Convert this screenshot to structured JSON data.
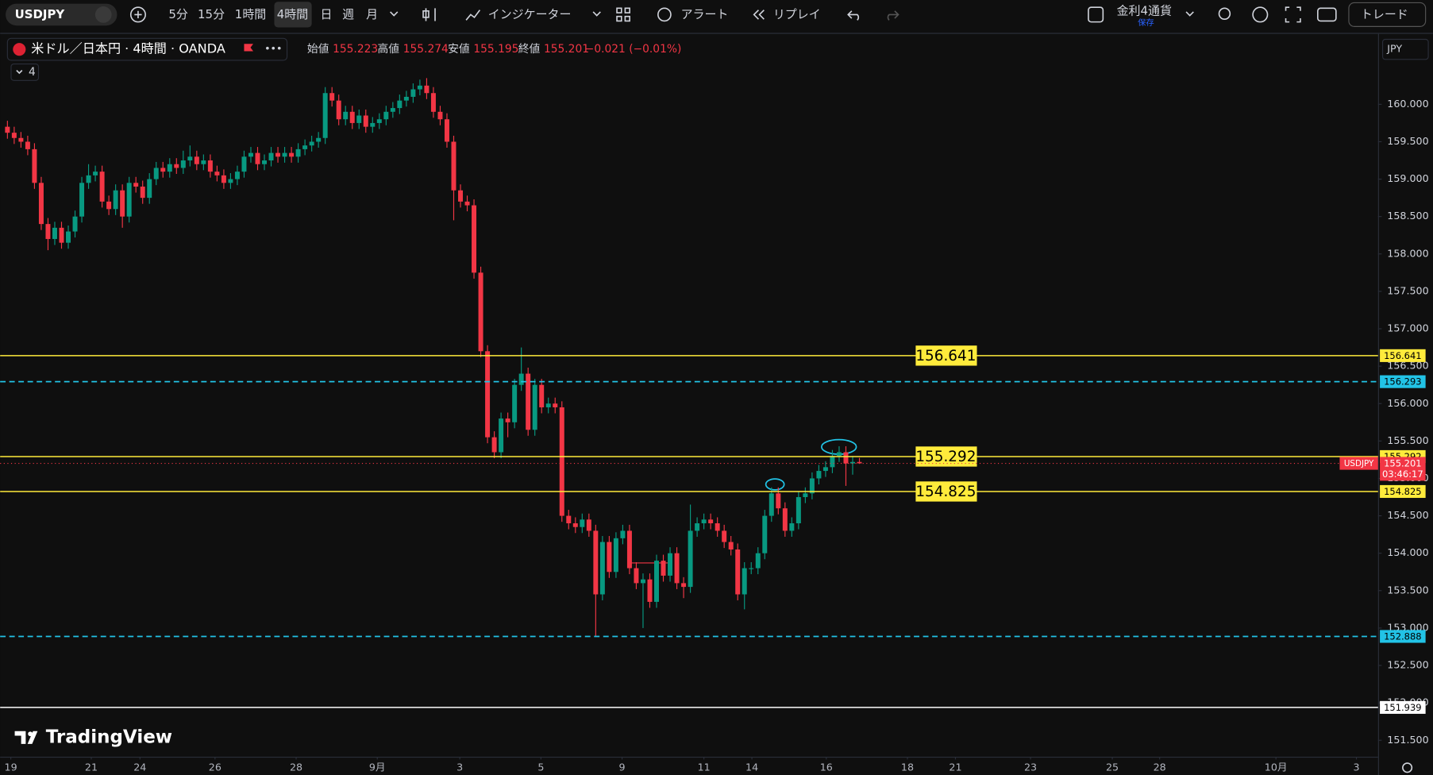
{
  "toolbar": {
    "symbol": "USDJPY",
    "intervals": [
      "5分",
      "15分",
      "1時間",
      "4時間",
      "日",
      "週",
      "月"
    ],
    "indicators": "インジケーター",
    "alert": "アラート",
    "replay": "リプレイ",
    "watchlist": "金利4通貨",
    "watchlist_sub": "保存",
    "trade": "トレード"
  },
  "legend": {
    "title": "米ドル／日本円 · 4時間 · OANDA",
    "items": [
      {
        "label": "始値",
        "value": "155.223"
      },
      {
        "label": "高値",
        "value": "155.274"
      },
      {
        "label": "安値",
        "value": "155.195"
      },
      {
        "label": "終値",
        "value": "155.201"
      }
    ],
    "change": "−0.021 (−0.01%)",
    "indicator_count": "4"
  },
  "currency": "JPY",
  "watermark": "TradingView",
  "chart_data": {
    "type": "candlestick",
    "up_color": "#089981",
    "down_color": "#f23645",
    "ylim": [
      151.28,
      160.93
    ],
    "yticks": [
      {
        "value": 151.5,
        "label": "151.500"
      },
      {
        "value": 152,
        "label": "152.000"
      },
      {
        "value": 152.5,
        "label": "152.500"
      },
      {
        "value": 153,
        "label": "153.000"
      },
      {
        "value": 153.5,
        "label": "153.500"
      },
      {
        "value": 154,
        "label": "154.000"
      },
      {
        "value": 154.5,
        "label": "154.500"
      },
      {
        "value": 155,
        "label": "155.000"
      },
      {
        "value": 155.5,
        "label": "155.500"
      },
      {
        "value": 156,
        "label": "156.000"
      },
      {
        "value": 156.5,
        "label": "156.500"
      },
      {
        "value": 157,
        "label": "157.000"
      },
      {
        "value": 157.5,
        "label": "157.500"
      },
      {
        "value": 158,
        "label": "158.000"
      },
      {
        "value": 158.5,
        "label": "158.500"
      },
      {
        "value": 159,
        "label": "159.000"
      },
      {
        "value": 159.5,
        "label": "159.500"
      },
      {
        "value": 160,
        "label": "160.000"
      }
    ],
    "xlim": [
      -1.08,
      202.7
    ],
    "xticks": [
      {
        "value": 0.5,
        "label": "19"
      },
      {
        "value": 12.4,
        "label": "21"
      },
      {
        "value": 19.6,
        "label": "24"
      },
      {
        "value": 30.7,
        "label": "26"
      },
      {
        "value": 42.7,
        "label": "28"
      },
      {
        "value": 54.7,
        "label": "9月"
      },
      {
        "value": 66.9,
        "label": "3"
      },
      {
        "value": 78.9,
        "label": "5"
      },
      {
        "value": 90.9,
        "label": "9"
      },
      {
        "value": 103,
        "label": "11"
      },
      {
        "value": 110.1,
        "label": "14"
      },
      {
        "value": 121.1,
        "label": "16"
      },
      {
        "value": 133.1,
        "label": "18"
      },
      {
        "value": 140.2,
        "label": "21"
      },
      {
        "value": 151.3,
        "label": "23"
      },
      {
        "value": 163.4,
        "label": "25"
      },
      {
        "value": 170.4,
        "label": "28"
      },
      {
        "value": 187.6,
        "label": "10月"
      },
      {
        "value": 199.5,
        "label": "3"
      }
    ],
    "open": [
      159.7,
      159.62,
      159.55,
      159.5,
      159.4,
      158.95,
      158.4,
      158.2,
      158.35,
      158.15,
      158.3,
      158.5,
      158.95,
      159.05,
      159.1,
      158.7,
      158.6,
      158.85,
      158.5,
      158.95,
      158.9,
      158.75,
      159.0,
      159.15,
      159.1,
      159.2,
      159.15,
      159.25,
      159.3,
      159.2,
      159.25,
      159.1,
      159.05,
      158.95,
      159.0,
      159.1,
      159.3,
      159.35,
      159.2,
      159.25,
      159.35,
      159.3,
      159.35,
      159.3,
      159.4,
      159.45,
      159.5,
      159.55,
      160.15,
      160.05,
      159.8,
      159.9,
      159.75,
      159.85,
      159.7,
      159.75,
      159.8,
      159.9,
      159.95,
      160.05,
      160.1,
      160.2,
      160.25,
      160.15,
      159.9,
      159.8,
      159.5,
      158.85,
      158.7,
      158.65,
      157.75,
      156.7,
      155.55,
      155.35,
      155.8,
      155.75,
      156.25,
      156.4,
      155.65,
      156.25,
      155.95,
      156.0,
      155.95,
      154.5,
      154.4,
      154.35,
      154.45,
      154.3,
      153.45,
      154.15,
      153.75,
      154.2,
      154.3,
      153.8,
      153.6,
      153.65,
      153.35,
      153.9,
      153.7,
      154.0,
      153.6,
      153.55,
      154.3,
      154.4,
      154.45,
      154.4,
      154.3,
      154.15,
      154.05,
      153.45,
      153.8,
      153.8,
      154.0,
      154.5,
      154.8,
      154.6,
      154.3,
      154.4,
      154.75,
      154.8,
      155.0,
      155.1,
      155.15,
      155.3,
      155.35,
      155.2,
      155.22
    ],
    "high": [
      159.78,
      159.7,
      159.63,
      159.58,
      159.48,
      159.03,
      158.48,
      158.43,
      158.43,
      158.38,
      158.58,
      159.03,
      159.2,
      159.18,
      159.18,
      158.78,
      158.93,
      158.93,
      159.03,
      159.03,
      158.98,
      159.08,
      159.23,
      159.23,
      159.28,
      159.28,
      159.38,
      159.45,
      159.38,
      159.33,
      159.33,
      159.18,
      159.13,
      159.08,
      159.18,
      159.38,
      159.43,
      159.43,
      159.33,
      159.43,
      159.43,
      159.43,
      159.43,
      159.48,
      159.53,
      159.58,
      159.63,
      160.23,
      160.23,
      160.13,
      159.98,
      159.98,
      159.93,
      159.93,
      159.83,
      159.88,
      159.98,
      160.03,
      160.13,
      160.18,
      160.28,
      160.33,
      160.35,
      160.23,
      159.98,
      159.88,
      159.58,
      158.93,
      158.78,
      158.73,
      157.83,
      156.78,
      155.63,
      155.88,
      155.88,
      156.33,
      156.75,
      156.48,
      156.33,
      156.33,
      156.08,
      156.08,
      156.03,
      154.58,
      154.48,
      154.53,
      154.53,
      154.38,
      154.23,
      154.23,
      154.28,
      154.38,
      154.38,
      153.88,
      153.73,
      153.73,
      153.98,
      153.98,
      154.08,
      154.08,
      153.68,
      154.65,
      154.48,
      154.53,
      154.53,
      154.48,
      154.38,
      154.23,
      154.13,
      153.88,
      153.88,
      154.08,
      154.58,
      154.88,
      154.88,
      154.68,
      154.48,
      154.83,
      154.88,
      155.08,
      155.18,
      155.23,
      155.38,
      155.43,
      155.43,
      155.3,
      155.274
    ],
    "low": [
      159.54,
      159.47,
      159.42,
      159.32,
      158.87,
      158.32,
      158.05,
      158.12,
      158.07,
      158.07,
      158.22,
      158.42,
      158.87,
      158.97,
      158.62,
      158.52,
      158.52,
      158.35,
      158.42,
      158.82,
      158.67,
      158.67,
      158.92,
      159.02,
      159.02,
      159.07,
      159.07,
      159.17,
      159.12,
      159.12,
      159.02,
      158.97,
      158.87,
      158.87,
      158.92,
      159.02,
      159.22,
      159.12,
      159.12,
      159.17,
      159.22,
      159.22,
      159.22,
      159.22,
      159.32,
      159.37,
      159.42,
      159.47,
      159.97,
      159.72,
      159.72,
      159.67,
      159.67,
      159.62,
      159.62,
      159.67,
      159.72,
      159.82,
      159.87,
      159.97,
      160.02,
      160.12,
      160.07,
      159.82,
      159.72,
      159.42,
      158.45,
      158.62,
      158.57,
      157.67,
      156.62,
      155.47,
      155.27,
      155.27,
      155.55,
      155.67,
      156.17,
      155.57,
      155.57,
      155.87,
      155.87,
      155.87,
      154.42,
      154.32,
      154.27,
      154.27,
      154.22,
      152.888,
      153.37,
      153.67,
      153.67,
      154.12,
      153.72,
      153.52,
      153.0,
      153.27,
      153.27,
      153.62,
      153.62,
      153.52,
      153.4,
      153.47,
      154.22,
      154.32,
      154.32,
      154.22,
      154.07,
      153.97,
      153.37,
      153.25,
      153.72,
      153.72,
      153.92,
      154.42,
      154.52,
      154.22,
      154.22,
      154.32,
      154.67,
      154.72,
      154.92,
      155.02,
      155.07,
      155.22,
      154.9,
      155.05,
      155.195
    ],
    "close": [
      159.62,
      159.55,
      159.5,
      159.4,
      158.95,
      158.4,
      158.2,
      158.35,
      158.15,
      158.3,
      158.5,
      158.95,
      159.05,
      159.1,
      158.7,
      158.6,
      158.85,
      158.5,
      158.95,
      158.9,
      158.75,
      159.0,
      159.15,
      159.1,
      159.2,
      159.15,
      159.25,
      159.3,
      159.2,
      159.25,
      159.1,
      159.05,
      158.95,
      159.0,
      159.1,
      159.3,
      159.35,
      159.2,
      159.25,
      159.35,
      159.3,
      159.35,
      159.3,
      159.4,
      159.45,
      159.5,
      159.55,
      160.15,
      160.05,
      159.8,
      159.9,
      159.75,
      159.85,
      159.7,
      159.75,
      159.8,
      159.9,
      159.95,
      160.05,
      160.1,
      160.2,
      160.25,
      160.15,
      159.9,
      159.8,
      159.5,
      158.85,
      158.7,
      158.65,
      157.75,
      156.7,
      155.55,
      155.35,
      155.8,
      155.75,
      156.25,
      156.4,
      155.65,
      156.25,
      155.95,
      156.0,
      155.95,
      154.5,
      154.4,
      154.35,
      154.45,
      154.3,
      153.45,
      154.15,
      153.75,
      154.2,
      154.3,
      153.8,
      153.6,
      153.65,
      153.35,
      153.9,
      153.7,
      154.0,
      153.6,
      153.55,
      154.3,
      154.4,
      154.45,
      154.4,
      154.3,
      154.15,
      154.05,
      153.45,
      153.8,
      153.8,
      154.0,
      154.5,
      154.8,
      154.6,
      154.3,
      154.4,
      154.75,
      154.8,
      155.0,
      155.1,
      155.15,
      155.3,
      155.35,
      155.2,
      155.22,
      155.201
    ],
    "levels": [
      {
        "value": 156.641,
        "color": "#ffeb3b",
        "style": "solid",
        "boxed": true
      },
      {
        "value": 156.293,
        "color": "#22c3e6",
        "style": "dashed",
        "boxed": false
      },
      {
        "value": 155.292,
        "color": "#ffeb3b",
        "style": "solid",
        "boxed": true
      },
      {
        "value": 154.825,
        "color": "#ffeb3b",
        "style": "solid",
        "boxed": true
      },
      {
        "value": 152.888,
        "color": "#22c3e6",
        "style": "dashed",
        "boxed": false
      },
      {
        "value": 151.939,
        "color": "#ffffff",
        "style": "solid",
        "boxed": false
      }
    ],
    "current_price": 155.201,
    "current_color": "#f23645",
    "symbol_tag": "USDJPY",
    "countdown": "03:46:17"
  }
}
